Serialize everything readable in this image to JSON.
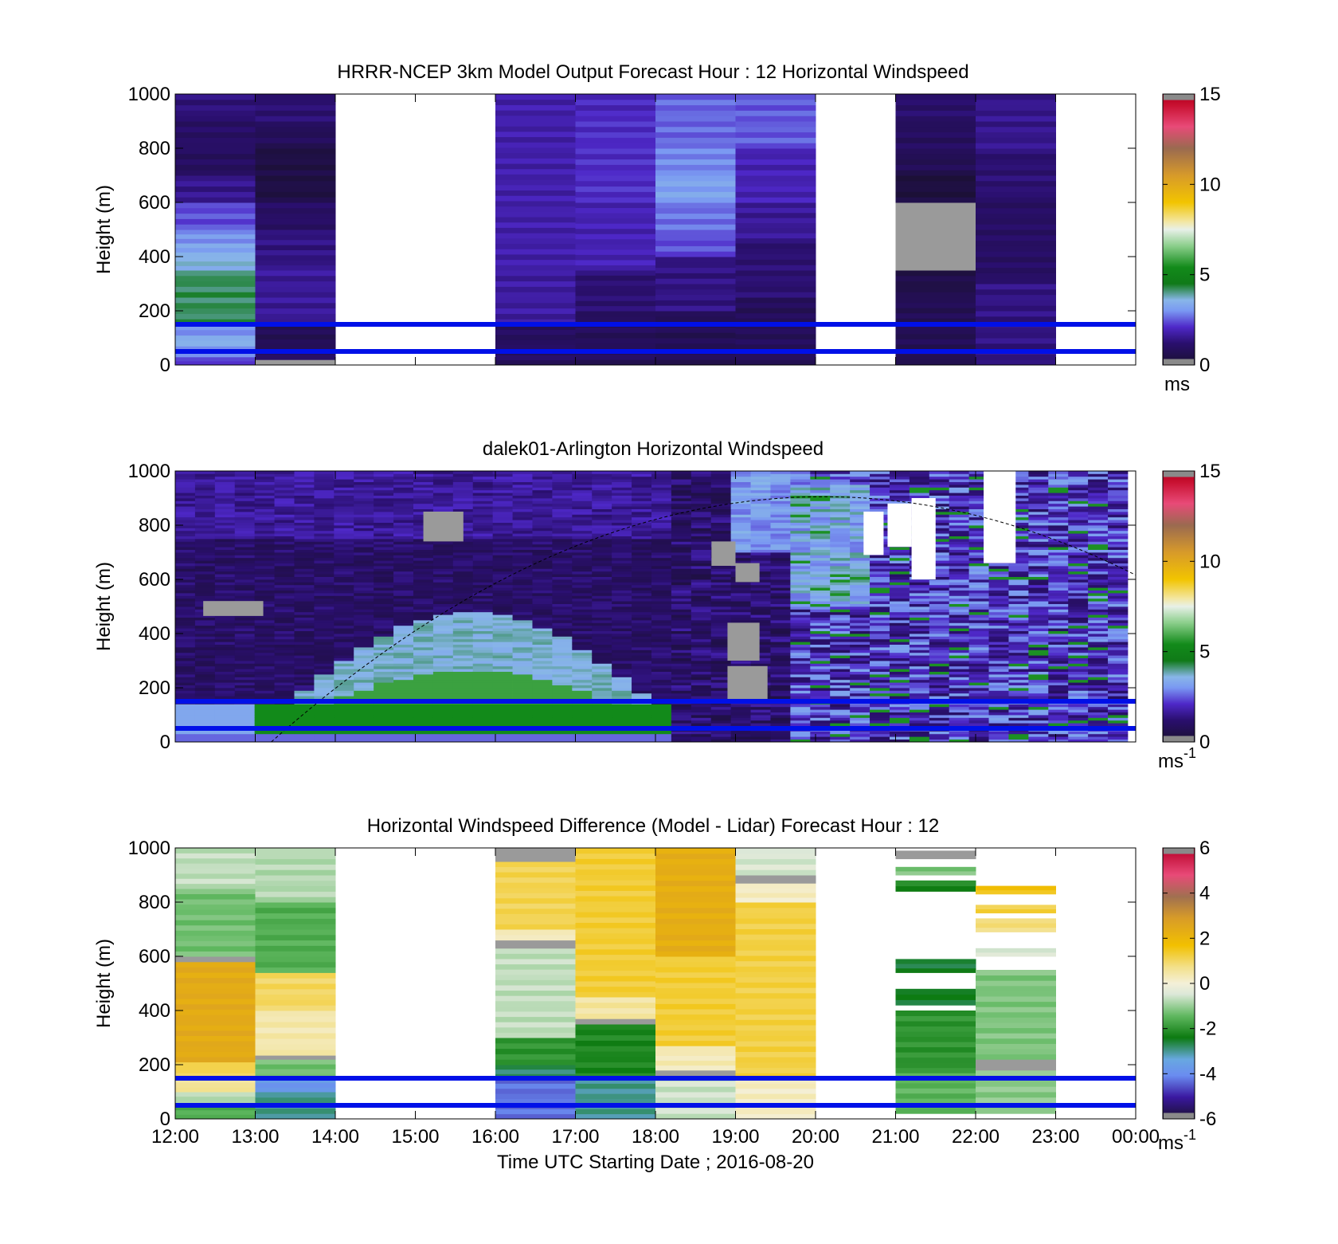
{
  "chart_data": [
    {
      "type": "heatmap",
      "title": "HRRR-NCEP 3km Model Output   Forecast Hour : 12 Horizontal Windspeed",
      "ylabel": "Height (m)",
      "xlabel": "",
      "ylim": [
        0,
        1000
      ],
      "yticks": [
        "0",
        "200",
        "400",
        "600",
        "800",
        "1000"
      ],
      "x_hours": [
        0,
        12
      ],
      "colorbar": {
        "label": "ms",
        "label_sup": "",
        "range": [
          0,
          15
        ],
        "ticks": [
          "0",
          "5",
          "10",
          "15"
        ]
      },
      "reference_lines_m": [
        50,
        150
      ],
      "blocks": [
        {
          "x0": 0,
          "x1": 1,
          "segments": [
            {
              "y0": 0,
              "y1": 30,
              "v": 2.2
            },
            {
              "y0": 30,
              "y1": 70,
              "v": 3.0
            },
            {
              "y0": 70,
              "y1": 110,
              "v": 3.4
            },
            {
              "y0": 110,
              "y1": 150,
              "v": 3.0
            },
            {
              "y0": 150,
              "y1": 350,
              "v": 4.2
            },
            {
              "y0": 350,
              "y1": 400,
              "v": 3.6
            },
            {
              "y0": 400,
              "y1": 450,
              "v": 3.3
            },
            {
              "y0": 450,
              "y1": 500,
              "v": 3.0
            },
            {
              "y0": 500,
              "y1": 600,
              "v": 2.4
            },
            {
              "y0": 600,
              "y1": 700,
              "v": 1.5
            },
            {
              "y0": 700,
              "y1": 800,
              "v": 0.9
            },
            {
              "y0": 800,
              "y1": 900,
              "v": 1.0
            },
            {
              "y0": 900,
              "y1": 1000,
              "v": 1.3
            }
          ]
        },
        {
          "x0": 1,
          "x1": 2,
          "segments": [
            {
              "y0": 0,
              "y1": 20,
              "v": -1
            },
            {
              "y0": 20,
              "y1": 60,
              "v": 1.0
            },
            {
              "y0": 60,
              "y1": 150,
              "v": 0.7
            },
            {
              "y0": 150,
              "y1": 350,
              "v": 1.6
            },
            {
              "y0": 350,
              "y1": 500,
              "v": 1.4
            },
            {
              "y0": 500,
              "y1": 600,
              "v": 1.0
            },
            {
              "y0": 600,
              "y1": 800,
              "v": 0.4
            },
            {
              "y0": 800,
              "y1": 900,
              "v": 0.8
            },
            {
              "y0": 900,
              "y1": 1000,
              "v": 1.2
            }
          ]
        },
        {
          "x0": 4,
          "x1": 5,
          "segments": [
            {
              "y0": 0,
              "y1": 150,
              "v": 0.9
            },
            {
              "y0": 150,
              "y1": 350,
              "v": 1.7
            },
            {
              "y0": 350,
              "y1": 1000,
              "v": 1.8
            }
          ]
        },
        {
          "x0": 5,
          "x1": 6,
          "segments": [
            {
              "y0": 0,
              "y1": 200,
              "v": 0.8
            },
            {
              "y0": 200,
              "y1": 350,
              "v": 1.2
            },
            {
              "y0": 350,
              "y1": 600,
              "v": 1.9
            },
            {
              "y0": 600,
              "y1": 900,
              "v": 2.1
            },
            {
              "y0": 900,
              "y1": 1000,
              "v": 2.0
            }
          ]
        },
        {
          "x0": 6,
          "x1": 7,
          "segments": [
            {
              "y0": 0,
              "y1": 200,
              "v": 0.7
            },
            {
              "y0": 200,
              "y1": 400,
              "v": 1.4
            },
            {
              "y0": 400,
              "y1": 500,
              "v": 2.4
            },
            {
              "y0": 500,
              "y1": 600,
              "v": 2.7
            },
            {
              "y0": 600,
              "y1": 700,
              "v": 3.2
            },
            {
              "y0": 700,
              "y1": 800,
              "v": 2.9
            },
            {
              "y0": 800,
              "y1": 1000,
              "v": 2.6
            }
          ]
        },
        {
          "x0": 7,
          "x1": 8,
          "segments": [
            {
              "y0": 0,
              "y1": 250,
              "v": 0.8
            },
            {
              "y0": 250,
              "y1": 450,
              "v": 1.2
            },
            {
              "y0": 450,
              "y1": 600,
              "v": 1.6
            },
            {
              "y0": 600,
              "y1": 800,
              "v": 1.9
            },
            {
              "y0": 800,
              "y1": 1000,
              "v": 2.5
            }
          ]
        },
        {
          "x0": 9,
          "x1": 10,
          "segments": [
            {
              "y0": 0,
              "y1": 250,
              "v": 0.7
            },
            {
              "y0": 250,
              "y1": 350,
              "v": 0.5
            },
            {
              "y0": 350,
              "y1": 600,
              "v": -1
            },
            {
              "y0": 600,
              "y1": 700,
              "v": 0.3
            },
            {
              "y0": 700,
              "y1": 800,
              "v": 0.7
            },
            {
              "y0": 800,
              "y1": 900,
              "v": 0.9
            },
            {
              "y0": 900,
              "y1": 1000,
              "v": 1.1
            }
          ]
        },
        {
          "x0": 10,
          "x1": 11,
          "segments": [
            {
              "y0": 0,
              "y1": 300,
              "v": 1.4
            },
            {
              "y0": 300,
              "y1": 600,
              "v": 1.0
            },
            {
              "y0": 600,
              "y1": 800,
              "v": 1.2
            },
            {
              "y0": 800,
              "y1": 1000,
              "v": 1.5
            }
          ]
        }
      ]
    },
    {
      "type": "heatmap",
      "title": "dalek01-Arlington  Horizontal Windspeed",
      "ylabel": "Height (m)",
      "xlabel": "",
      "ylim": [
        0,
        1000
      ],
      "yticks": [
        "0",
        "200",
        "400",
        "600",
        "800",
        "1000"
      ],
      "x_hours": [
        0,
        12
      ],
      "colorbar": {
        "label": "ms",
        "label_sup": "-1",
        "range": [
          0,
          15
        ],
        "ticks": [
          "0",
          "5",
          "10",
          "15"
        ]
      },
      "reference_lines_m": [
        50,
        150
      ],
      "data_end_hour": 11.9,
      "boundary_layer_curve": {
        "peak_hour": 8.1,
        "peak_height_m": 905,
        "start_hour": 1.2
      },
      "gray_cells_m": [
        {
          "x0": 0.35,
          "x1": 1.1,
          "y0": 465,
          "y1": 520
        },
        {
          "x0": 3.1,
          "x1": 3.6,
          "y0": 740,
          "y1": 850
        },
        {
          "x0": 6.7,
          "x1": 7.0,
          "y0": 650,
          "y1": 740
        },
        {
          "x0": 6.9,
          "x1": 7.4,
          "y0": 150,
          "y1": 280
        },
        {
          "x0": 6.9,
          "x1": 7.3,
          "y0": 300,
          "y1": 440
        },
        {
          "x0": 7.0,
          "x1": 7.3,
          "y0": 590,
          "y1": 660
        }
      ],
      "white_cells_m": [
        {
          "x0": 8.6,
          "x1": 8.85,
          "y0": 690,
          "y1": 850
        },
        {
          "x0": 8.9,
          "x1": 9.2,
          "y0": 720,
          "y1": 880
        },
        {
          "x0": 9.2,
          "x1": 9.5,
          "y0": 600,
          "y1": 900
        },
        {
          "x0": 10.1,
          "x1": 10.5,
          "y0": 660,
          "y1": 1000
        },
        {
          "x0": 10.15,
          "x1": 10.4,
          "y0": 900,
          "y1": 1000
        }
      ]
    },
    {
      "type": "heatmap",
      "title": "Horizontal Windspeed Difference (Model - Lidar) Forecast Hour : 12",
      "ylabel": "Height (m)",
      "xlabel": "Time UTC  Starting Date ; 2016-08-20",
      "ylim": [
        0,
        1000
      ],
      "yticks": [
        "0",
        "200",
        "400",
        "600",
        "800",
        "1000"
      ],
      "x_hours": [
        0,
        12
      ],
      "xticks": [
        "12:00",
        "13:00",
        "14:00",
        "15:00",
        "16:00",
        "17:00",
        "18:00",
        "19:00",
        "20:00",
        "21:00",
        "22:00",
        "23:00",
        "00:00"
      ],
      "colorbar": {
        "label": "ms",
        "label_sup": "-1",
        "range": [
          -6,
          6
        ],
        "ticks": [
          "-6",
          "-4",
          "-2",
          "0",
          "2",
          "4",
          "6"
        ]
      },
      "reference_lines_m": [
        50,
        150
      ],
      "blocks": [
        {
          "x0": 0,
          "x1": 1,
          "segments": [
            {
              "y0": 0,
              "y1": 50,
              "v": -1.6
            },
            {
              "y0": 50,
              "y1": 100,
              "v": -0.8
            },
            {
              "y0": 100,
              "y1": 150,
              "v": 0.6
            },
            {
              "y0": 150,
              "y1": 210,
              "v": 1.1
            },
            {
              "y0": 210,
              "y1": 580,
              "v": 2.4
            },
            {
              "y0": 580,
              "y1": 600,
              "v": -7
            },
            {
              "y0": 600,
              "y1": 850,
              "v": -1.3
            },
            {
              "y0": 850,
              "y1": 1000,
              "v": -0.7
            }
          ]
        },
        {
          "x0": 1,
          "x1": 2,
          "segments": [
            {
              "y0": 0,
              "y1": 100,
              "v": -3.0
            },
            {
              "y0": 100,
              "y1": 150,
              "v": -3.8
            },
            {
              "y0": 150,
              "y1": 220,
              "v": -1.3
            },
            {
              "y0": 220,
              "y1": 235,
              "v": -7
            },
            {
              "y0": 235,
              "y1": 400,
              "v": 0.4
            },
            {
              "y0": 400,
              "y1": 540,
              "v": 1.0
            },
            {
              "y0": 540,
              "y1": 800,
              "v": -1.6
            },
            {
              "y0": 800,
              "y1": 1000,
              "v": -0.8
            }
          ]
        },
        {
          "x0": 4,
          "x1": 5,
          "segments": [
            {
              "y0": 0,
              "y1": 150,
              "v": -4.3
            },
            {
              "y0": 150,
              "y1": 200,
              "v": -2.8
            },
            {
              "y0": 200,
              "y1": 300,
              "v": -2.0
            },
            {
              "y0": 300,
              "y1": 630,
              "v": -0.7
            },
            {
              "y0": 630,
              "y1": 660,
              "v": -7
            },
            {
              "y0": 660,
              "y1": 700,
              "v": 0.3
            },
            {
              "y0": 700,
              "y1": 950,
              "v": 1.1
            },
            {
              "y0": 950,
              "y1": 1000,
              "v": -1.0
            }
          ]
        },
        {
          "x0": 5,
          "x1": 6,
          "segments": [
            {
              "y0": 0,
              "y1": 150,
              "v": -3.0
            },
            {
              "y0": 150,
              "y1": 350,
              "v": -2.2
            },
            {
              "y0": 350,
              "y1": 370,
              "v": -7
            },
            {
              "y0": 370,
              "y1": 450,
              "v": 0.5
            },
            {
              "y0": 450,
              "y1": 1000,
              "v": 1.3
            }
          ]
        },
        {
          "x0": 6,
          "x1": 7,
          "segments": [
            {
              "y0": 0,
              "y1": 160,
              "v": -0.6
            },
            {
              "y0": 160,
              "y1": 180,
              "v": -7
            },
            {
              "y0": 180,
              "y1": 270,
              "v": 0.3
            },
            {
              "y0": 270,
              "y1": 600,
              "v": 1.3
            },
            {
              "y0": 600,
              "y1": 1000,
              "v": 2.3
            }
          ]
        },
        {
          "x0": 7,
          "x1": 8,
          "segments": [
            {
              "y0": 0,
              "y1": 150,
              "v": 0.2
            },
            {
              "y0": 150,
              "y1": 800,
              "v": 1.2
            },
            {
              "y0": 800,
              "y1": 870,
              "v": 0.2
            },
            {
              "y0": 870,
              "y1": 900,
              "v": -7
            },
            {
              "y0": 900,
              "y1": 1000,
              "v": -0.5
            }
          ]
        },
        {
          "x0": 9,
          "x1": 10,
          "segments": [
            {
              "y0": 20,
              "y1": 170,
              "v": -1.5
            },
            {
              "y0": 170,
              "y1": 400,
              "v": -2.0
            },
            {
              "y0": 420,
              "y1": 480,
              "v": -2.5
            },
            {
              "y0": 540,
              "y1": 590,
              "v": -2.6
            },
            {
              "y0": 840,
              "y1": 880,
              "v": -2.2
            },
            {
              "y0": 900,
              "y1": 930,
              "v": -1.2
            },
            {
              "y0": 960,
              "y1": 990,
              "v": -7
            }
          ]
        },
        {
          "x0": 10,
          "x1": 11,
          "segments": [
            {
              "y0": 20,
              "y1": 180,
              "v": -1.1
            },
            {
              "y0": 180,
              "y1": 220,
              "v": -7
            },
            {
              "y0": 220,
              "y1": 550,
              "v": -1.2
            },
            {
              "y0": 600,
              "y1": 630,
              "v": -0.5
            },
            {
              "y0": 690,
              "y1": 740,
              "v": 0.8
            },
            {
              "y0": 760,
              "y1": 790,
              "v": 1.2
            },
            {
              "y0": 830,
              "y1": 860,
              "v": 1.6
            }
          ]
        }
      ]
    }
  ]
}
